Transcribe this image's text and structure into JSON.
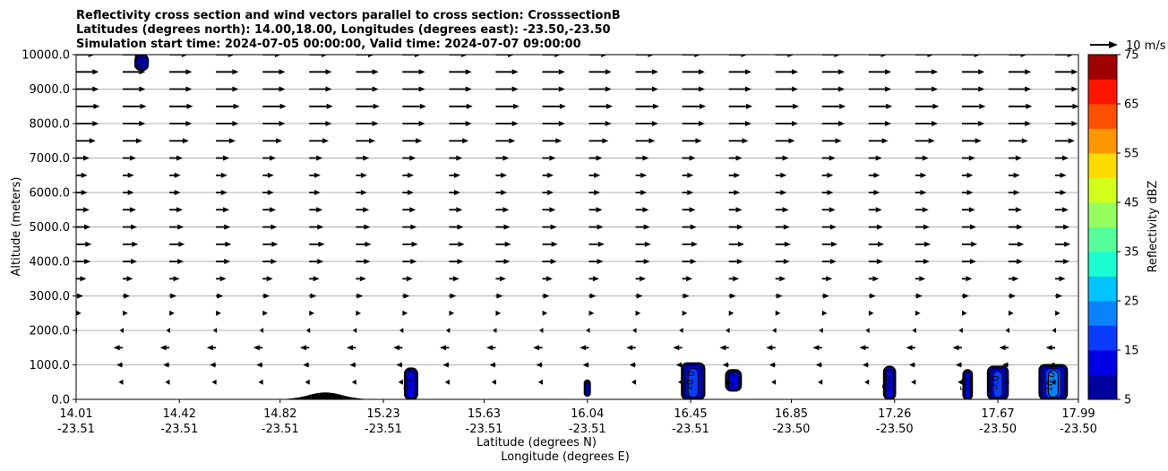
{
  "chart_data": {
    "type": "heatmap",
    "title_lines": [
      "Reflectivity cross section and wind vectors parallel to cross section: CrosssectionB",
      "Latitudes (degrees north): 14.00,18.00, Longitudes (degrees east): -23.50,-23.50",
      "Simulation start time: 2024-07-05 00:00:00, Valid time: 2024-07-07 09:00:00"
    ],
    "xlabel_lines": [
      "Latitude (degrees N)",
      "Longitude (degrees E)"
    ],
    "ylabel": "Altitude (meters)",
    "ylim": [
      0,
      10000
    ],
    "xlim": [
      14.01,
      17.99
    ],
    "y_ticks": [
      0,
      1000,
      2000,
      3000,
      4000,
      5000,
      6000,
      7000,
      8000,
      9000,
      10000
    ],
    "y_tick_labels": [
      "0.0",
      "1000.0",
      "2000.0",
      "3000.0",
      "4000.0",
      "5000.0",
      "6000.0",
      "7000.0",
      "8000.0",
      "9000.0",
      "10000.0"
    ],
    "x_ticks": [
      {
        "lat": 14.01,
        "label_lat": "14.01",
        "label_lon": "-23.51"
      },
      {
        "lat": 14.42,
        "label_lat": "14.42",
        "label_lon": "-23.51"
      },
      {
        "lat": 14.82,
        "label_lat": "14.82",
        "label_lon": "-23.51"
      },
      {
        "lat": 15.23,
        "label_lat": "15.23",
        "label_lon": "-23.51"
      },
      {
        "lat": 15.63,
        "label_lat": "15.63",
        "label_lon": "-23.51"
      },
      {
        "lat": 16.04,
        "label_lat": "16.04",
        "label_lon": "-23.51"
      },
      {
        "lat": 16.45,
        "label_lat": "16.45",
        "label_lon": "-23.51"
      },
      {
        "lat": 16.85,
        "label_lat": "16.85",
        "label_lon": "-23.50"
      },
      {
        "lat": 17.26,
        "label_lat": "17.26",
        "label_lon": "-23.50"
      },
      {
        "lat": 17.67,
        "label_lat": "17.67",
        "label_lon": "-23.50"
      },
      {
        "lat": 17.99,
        "label_lat": "17.99",
        "label_lon": "-23.50"
      }
    ],
    "grid": "horizontal",
    "colorbar": {
      "label": "Reflectivity dBZ",
      "levels": [
        5,
        10,
        15,
        20,
        25,
        30,
        35,
        40,
        45,
        50,
        55,
        60,
        65,
        70,
        75
      ],
      "tick_labels": [
        "5",
        "15",
        "25",
        "35",
        "45",
        "55",
        "65",
        "75"
      ],
      "colors": [
        "#00009e",
        "#0000e6",
        "#0a3cff",
        "#0a82ff",
        "#00c3ff",
        "#19ffd2",
        "#55ff9b",
        "#96ff5f",
        "#d2ff19",
        "#ffdc00",
        "#ff9600",
        "#ff5000",
        "#ff1400",
        "#a00000"
      ]
    },
    "quiver_key": {
      "label": "10 m/s",
      "speed": 10
    },
    "wind_levels_m": [
      500,
      1000,
      1500,
      2000,
      2500,
      3000,
      3500,
      4000,
      4500,
      5000,
      5500,
      6000,
      6500,
      7000,
      7500,
      8000,
      8500,
      9000,
      9500,
      10000
    ],
    "wind_u_ms": [
      -2,
      -3,
      -4.5,
      -1.5,
      2.5,
      3.5,
      5,
      7,
      7.5,
      7,
      6.5,
      5.5,
      5.5,
      6.5,
      9.5,
      11,
      11.5,
      11,
      11,
      9
    ],
    "terrain": {
      "lat_center": 15.0,
      "height_m": 200,
      "half_width": 0.12
    },
    "echo_cells": [
      {
        "lat": 14.27,
        "z_top_m": 10000,
        "z_bot_m": 9550,
        "width": 0.05,
        "max_dbz": 10,
        "label": "5.0"
      },
      {
        "lat": 15.34,
        "z_top_m": 900,
        "z_bot_m": 0,
        "width": 0.05,
        "max_dbz": 15,
        "label": "5.0"
      },
      {
        "lat": 16.04,
        "z_top_m": 550,
        "z_bot_m": 100,
        "width": 0.015,
        "max_dbz": 5,
        "label": ""
      },
      {
        "lat": 16.46,
        "z_top_m": 1050,
        "z_bot_m": 0,
        "width": 0.09,
        "max_dbz": 20,
        "label": "10.0"
      },
      {
        "lat": 16.62,
        "z_top_m": 850,
        "z_bot_m": 250,
        "width": 0.06,
        "max_dbz": 15,
        "label": "5.0"
      },
      {
        "lat": 17.24,
        "z_top_m": 950,
        "z_bot_m": 0,
        "width": 0.045,
        "max_dbz": 15,
        "label": "5.0"
      },
      {
        "lat": 17.55,
        "z_top_m": 850,
        "z_bot_m": 0,
        "width": 0.035,
        "max_dbz": 15,
        "label": "5.0"
      },
      {
        "lat": 17.67,
        "z_top_m": 950,
        "z_bot_m": 0,
        "width": 0.08,
        "max_dbz": 20,
        "label": "5.0"
      },
      {
        "lat": 17.89,
        "z_top_m": 1000,
        "z_bot_m": 0,
        "width": 0.11,
        "max_dbz": 25,
        "label": "10.0"
      }
    ]
  }
}
